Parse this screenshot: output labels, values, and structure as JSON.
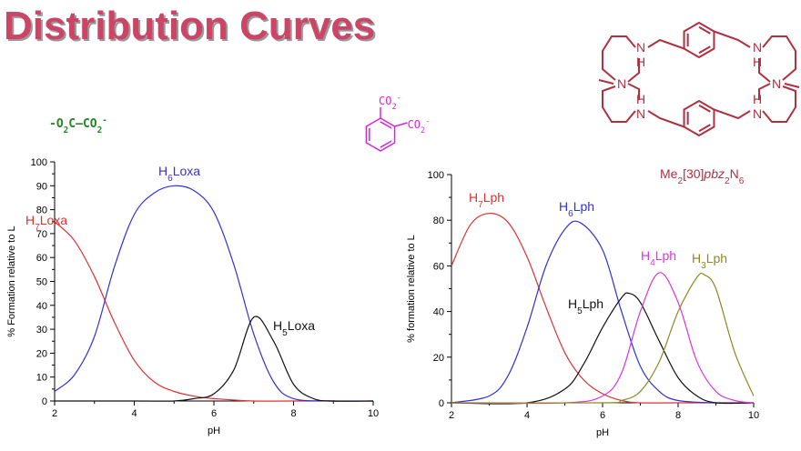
{
  "title": "Distribution Curves",
  "oxalate_formula": {
    "left": "-O",
    "sub1": "2",
    "mid": "C—CO",
    "sub2": "2",
    "sup": "-",
    "color": "#228822"
  },
  "phthalate_formula": {
    "co2": "CO",
    "sub": "2",
    "sup": "-",
    "color": "#dd22dd"
  },
  "macrocycle": {
    "label_main": "Me",
    "label_sub1": "2",
    "label_mid": "[30]",
    "label_ital": "pbz",
    "label_sub2": "2",
    "label_n": "N",
    "label_sub3": "6",
    "nh": "N",
    "h": "H",
    "n_tert": "N",
    "color": "#b03040"
  },
  "chart_data": [
    {
      "type": "line",
      "xlabel": "pH",
      "ylabel": "% Formation relative to L",
      "xlim": [
        2,
        10
      ],
      "ylim": [
        0,
        100
      ],
      "xticks": [
        2,
        4,
        6,
        8,
        10
      ],
      "yticks": [
        0,
        10,
        20,
        30,
        40,
        50,
        60,
        70,
        80,
        90,
        100
      ],
      "grid": false,
      "series": [
        {
          "name": "H7Loxa",
          "label_main": "H",
          "label_sub": "7",
          "label_tail": "Loxa",
          "color": "#e03030",
          "x": [
            2.0,
            2.5,
            3.0,
            3.5,
            4.0,
            4.5,
            5.0,
            5.5,
            6.0,
            7.0,
            8.0,
            10.0
          ],
          "y": [
            75,
            67,
            52,
            33,
            17,
            8,
            4,
            2,
            1,
            0,
            0,
            0
          ]
        },
        {
          "name": "H6Loxa",
          "label_main": "H",
          "label_sub": "6",
          "label_tail": "Loxa",
          "color": "#3030e0",
          "x": [
            2.0,
            2.5,
            3.0,
            3.5,
            4.0,
            4.5,
            5.0,
            5.5,
            6.0,
            6.5,
            7.0,
            7.5,
            8.0,
            9.0,
            10.0
          ],
          "y": [
            4,
            11,
            27,
            56,
            78,
            87,
            90,
            88,
            79,
            57,
            28,
            8,
            1,
            0,
            0
          ]
        },
        {
          "name": "H5Loxa",
          "label_main": "H",
          "label_sub": "5",
          "label_tail": "Loxa",
          "color": "#111111",
          "x": [
            2.0,
            4.0,
            5.0,
            5.5,
            6.0,
            6.5,
            7.0,
            7.5,
            8.0,
            8.5,
            9.0,
            10.0
          ],
          "y": [
            0,
            0,
            0,
            1,
            3,
            13,
            35,
            25,
            7,
            1,
            0,
            0
          ]
        }
      ]
    },
    {
      "type": "line",
      "xlabel": "pH",
      "ylabel": "% formation relative to L",
      "xlim": [
        2,
        10
      ],
      "ylim": [
        0,
        100
      ],
      "xticks": [
        2,
        4,
        6,
        8,
        10
      ],
      "yticks": [
        0,
        20,
        40,
        60,
        80,
        100
      ],
      "grid": false,
      "series": [
        {
          "name": "H7Lph",
          "label_main": "H",
          "label_sub": "7",
          "label_tail": "Lph",
          "color": "#e03030",
          "x": [
            2.0,
            2.5,
            3.0,
            3.5,
            4.0,
            4.5,
            5.0,
            5.5,
            6.0,
            6.5,
            7.0,
            8.0,
            10.0
          ],
          "y": [
            60,
            78,
            83,
            79,
            64,
            42,
            22,
            10,
            4,
            1,
            0,
            0,
            0
          ]
        },
        {
          "name": "H6Lph",
          "label_main": "H",
          "label_sub": "6",
          "label_tail": "Lph",
          "color": "#3030e0",
          "x": [
            2.0,
            3.0,
            3.5,
            4.0,
            4.5,
            5.0,
            5.4,
            6.0,
            6.5,
            7.0,
            7.5,
            8.0,
            9.0,
            10.0
          ],
          "y": [
            0,
            3,
            12,
            33,
            60,
            76,
            79,
            67,
            40,
            16,
            5,
            1,
            0,
            0
          ]
        },
        {
          "name": "H5Lph",
          "label_main": "H",
          "label_sub": "5",
          "label_tail": "Lph",
          "color": "#111111",
          "x": [
            2.0,
            4.0,
            5.0,
            5.5,
            6.0,
            6.5,
            6.7,
            7.0,
            7.5,
            8.0,
            8.5,
            9.0,
            10.0
          ],
          "y": [
            0,
            0,
            6,
            17,
            33,
            46,
            48,
            44,
            27,
            11,
            3,
            0,
            0
          ]
        },
        {
          "name": "H4Lph",
          "label_main": "H",
          "label_sub": "4",
          "label_tail": "Lph",
          "color": "#e030e0",
          "x": [
            2.0,
            5.0,
            6.0,
            6.5,
            7.0,
            7.5,
            8.0,
            8.5,
            9.0,
            9.5,
            10.0
          ],
          "y": [
            0,
            0,
            3,
            13,
            40,
            57,
            44,
            18,
            5,
            1,
            0
          ]
        },
        {
          "name": "H3Lph",
          "label_main": "H",
          "label_sub": "3",
          "label_tail": "Lph",
          "color": "#8a8a22",
          "x": [
            2.0,
            6.0,
            6.5,
            7.0,
            7.5,
            8.0,
            8.5,
            8.7,
            9.0,
            9.5,
            10.0
          ],
          "y": [
            0,
            0,
            1,
            5,
            18,
            40,
            55,
            56,
            50,
            22,
            3
          ]
        }
      ]
    }
  ]
}
